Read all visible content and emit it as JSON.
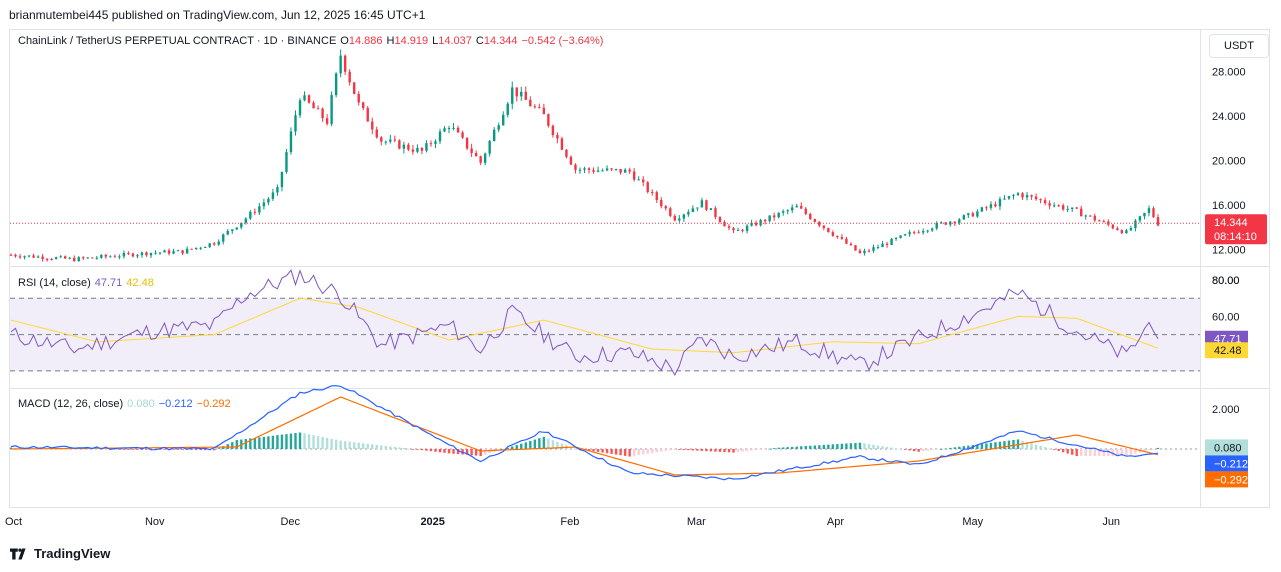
{
  "header": {
    "published": "brianmutembei445 published on TradingView.com, Jun 12, 2025 16:45 UTC+1"
  },
  "legend": {
    "symbol": "ChainLink / TetherUS PERPETUAL CONTRACT · 1D · BINANCE",
    "o_label": "O",
    "o_value": "14.886",
    "h_label": "H",
    "h_value": "14.919",
    "l_label": "L",
    "l_value": "14.037",
    "c_label": "C",
    "c_value": "14.344",
    "change": "−0.542 (−3.64%)"
  },
  "currency_button": "USDT",
  "price_badge": {
    "price": "14.344",
    "countdown": "08:14:10"
  },
  "rsi_legend": {
    "label": "RSI (14, close)",
    "rsi": "47.71",
    "ma": "42.48"
  },
  "macd_legend": {
    "label": "MACD (12, 26, close)",
    "hist": "0.080",
    "macd": "−0.212",
    "signal": "−0.292"
  },
  "footer": {
    "brand": "TradingView"
  },
  "colors": {
    "up": "#089981",
    "down": "#f23645",
    "rsi": "#7e57c2",
    "rsi_ma": "#fdd835",
    "macd": "#2962ff",
    "signal": "#ff6d00"
  },
  "chart_data": [
    {
      "type": "candlestick",
      "title": "ChainLink / TetherUS PERPETUAL CONTRACT · 1D · BINANCE",
      "x_ticks": [
        "Oct",
        "Nov",
        "Dec",
        "2025",
        "Feb",
        "Mar",
        "Apr",
        "May",
        "Jun"
      ],
      "y_ticks": [
        "16.000",
        "20.000",
        "24.000",
        "28.000"
      ],
      "y_ticks_partial": [
        "12.000"
      ],
      "ylim": [
        10.5,
        31
      ],
      "last_price": 14.344,
      "close_series": [
        {
          "d": "2024-10-01",
          "c": 11.5
        },
        {
          "d": "2024-10-15",
          "c": 11.1
        },
        {
          "d": "2024-11-01",
          "c": 11.7
        },
        {
          "d": "2024-11-08",
          "c": 11.8
        },
        {
          "d": "2024-11-15",
          "c": 12.6
        },
        {
          "d": "2024-11-22",
          "c": 14.8
        },
        {
          "d": "2024-11-29",
          "c": 17.3
        },
        {
          "d": "2024-12-04",
          "c": 25.8
        },
        {
          "d": "2024-12-10",
          "c": 23.5
        },
        {
          "d": "2024-12-13",
          "c": 29.5
        },
        {
          "d": "2024-12-17",
          "c": 25.0
        },
        {
          "d": "2024-12-22",
          "c": 21.8
        },
        {
          "d": "2024-12-31",
          "c": 20.8
        },
        {
          "d": "2025-01-06",
          "c": 23.2
        },
        {
          "d": "2025-01-13",
          "c": 19.8
        },
        {
          "d": "2025-01-20",
          "c": 26.4
        },
        {
          "d": "2025-01-27",
          "c": 24.0
        },
        {
          "d": "2025-02-03",
          "c": 19.2
        },
        {
          "d": "2025-02-15",
          "c": 19.0
        },
        {
          "d": "2025-02-25",
          "c": 14.8
        },
        {
          "d": "2025-03-03",
          "c": 16.2
        },
        {
          "d": "2025-03-10",
          "c": 13.5
        },
        {
          "d": "2025-03-24",
          "c": 15.8
        },
        {
          "d": "2025-04-07",
          "c": 11.6
        },
        {
          "d": "2025-04-20",
          "c": 13.7
        },
        {
          "d": "2025-05-01",
          "c": 15.0
        },
        {
          "d": "2025-05-12",
          "c": 17.0
        },
        {
          "d": "2025-05-25",
          "c": 15.4
        },
        {
          "d": "2025-06-05",
          "c": 13.5
        },
        {
          "d": "2025-06-10",
          "c": 15.6
        },
        {
          "d": "2025-06-12",
          "c": 14.344
        }
      ]
    },
    {
      "type": "line",
      "title": "RSI (14, close)",
      "y_ticks": [
        "60.00",
        "80.00"
      ],
      "bands": [
        70,
        30
      ],
      "series": [
        {
          "name": "RSI",
          "points": [
            {
              "d": "2024-10-01",
              "v": 50
            },
            {
              "d": "2024-10-15",
              "v": 42
            },
            {
              "d": "2024-11-01",
              "v": 52
            },
            {
              "d": "2024-11-15",
              "v": 55
            },
            {
              "d": "2024-11-22",
              "v": 72
            },
            {
              "d": "2024-12-04",
              "v": 83
            },
            {
              "d": "2024-12-13",
              "v": 72
            },
            {
              "d": "2024-12-22",
              "v": 44
            },
            {
              "d": "2025-01-06",
              "v": 55
            },
            {
              "d": "2025-01-13",
              "v": 42
            },
            {
              "d": "2025-01-20",
              "v": 62
            },
            {
              "d": "2025-02-03",
              "v": 38
            },
            {
              "d": "2025-02-15",
              "v": 40
            },
            {
              "d": "2025-02-25",
              "v": 31
            },
            {
              "d": "2025-03-03",
              "v": 48
            },
            {
              "d": "2025-03-10",
              "v": 38
            },
            {
              "d": "2025-03-24",
              "v": 46
            },
            {
              "d": "2025-04-07",
              "v": 33
            },
            {
              "d": "2025-04-20",
              "v": 48
            },
            {
              "d": "2025-05-01",
              "v": 60
            },
            {
              "d": "2025-05-12",
              "v": 73
            },
            {
              "d": "2025-05-25",
              "v": 52
            },
            {
              "d": "2025-06-05",
              "v": 38
            },
            {
              "d": "2025-06-10",
              "v": 56
            },
            {
              "d": "2025-06-12",
              "v": 47.71
            }
          ]
        },
        {
          "name": "RSI MA",
          "points": [
            {
              "d": "2024-10-01",
              "v": 58
            },
            {
              "d": "2024-10-20",
              "v": 46
            },
            {
              "d": "2024-11-15",
              "v": 50
            },
            {
              "d": "2024-12-04",
              "v": 70
            },
            {
              "d": "2024-12-17",
              "v": 65
            },
            {
              "d": "2025-01-06",
              "v": 47
            },
            {
              "d": "2025-01-27",
              "v": 58
            },
            {
              "d": "2025-02-20",
              "v": 42
            },
            {
              "d": "2025-03-10",
              "v": 40
            },
            {
              "d": "2025-04-01",
              "v": 46
            },
            {
              "d": "2025-04-20",
              "v": 45
            },
            {
              "d": "2025-05-12",
              "v": 60
            },
            {
              "d": "2025-05-25",
              "v": 59
            },
            {
              "d": "2025-06-12",
              "v": 42.48
            }
          ]
        }
      ]
    },
    {
      "type": "line+histogram",
      "title": "MACD (12, 26, close)",
      "y_ticks": [
        "2.000"
      ],
      "series": [
        {
          "name": "MACD",
          "points": [
            {
              "d": "2024-10-01",
              "v": 0.1
            },
            {
              "d": "2024-11-15",
              "v": 0.0
            },
            {
              "d": "2024-12-04",
              "v": 2.8
            },
            {
              "d": "2024-12-13",
              "v": 3.2
            },
            {
              "d": "2025-01-06",
              "v": 0.2
            },
            {
              "d": "2025-01-13",
              "v": -0.6
            },
            {
              "d": "2025-01-27",
              "v": 0.9
            },
            {
              "d": "2025-02-15",
              "v": -1.2
            },
            {
              "d": "2025-03-10",
              "v": -1.5
            },
            {
              "d": "2025-04-07",
              "v": -0.4
            },
            {
              "d": "2025-04-20",
              "v": -0.8
            },
            {
              "d": "2025-05-12",
              "v": 0.9
            },
            {
              "d": "2025-06-05",
              "v": -0.4
            },
            {
              "d": "2025-06-12",
              "v": -0.212
            }
          ]
        },
        {
          "name": "Signal",
          "points": [
            {
              "d": "2024-10-01",
              "v": 0.0
            },
            {
              "d": "2024-11-20",
              "v": 0.1
            },
            {
              "d": "2024-12-13",
              "v": 2.6
            },
            {
              "d": "2025-01-13",
              "v": -0.1
            },
            {
              "d": "2025-02-03",
              "v": 0.1
            },
            {
              "d": "2025-02-25",
              "v": -1.3
            },
            {
              "d": "2025-03-20",
              "v": -1.2
            },
            {
              "d": "2025-04-20",
              "v": -0.6
            },
            {
              "d": "2025-05-25",
              "v": 0.7
            },
            {
              "d": "2025-06-12",
              "v": -0.292
            }
          ]
        }
      ],
      "last_histogram": 0.08
    }
  ]
}
